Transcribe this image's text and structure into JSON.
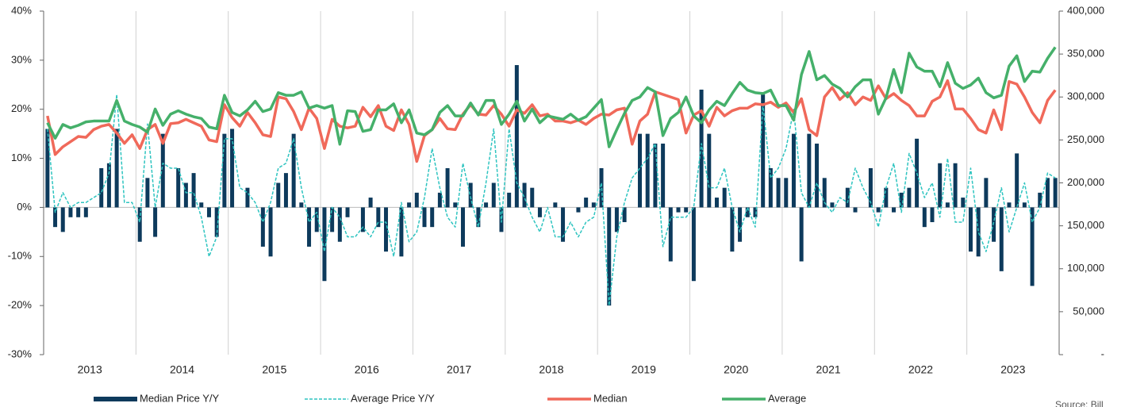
{
  "chart_data": {
    "type": "combo",
    "categories": [
      null,
      null,
      null,
      null,
      null,
      null,
      "2013",
      null,
      null,
      null,
      null,
      null,
      null,
      null,
      null,
      null,
      null,
      null,
      "2014",
      null,
      null,
      null,
      null,
      null,
      null,
      null,
      null,
      null,
      null,
      null,
      "2015",
      null,
      null,
      null,
      null,
      null,
      null,
      null,
      null,
      null,
      null,
      null,
      "2016",
      null,
      null,
      null,
      null,
      null,
      null,
      null,
      null,
      null,
      null,
      null,
      "2017",
      null,
      null,
      null,
      null,
      null,
      null,
      null,
      null,
      null,
      null,
      null,
      "2018",
      null,
      null,
      null,
      null,
      null,
      null,
      null,
      null,
      null,
      null,
      null,
      "2019",
      null,
      null,
      null,
      null,
      null,
      null,
      null,
      null,
      null,
      null,
      null,
      "2020",
      null,
      null,
      null,
      null,
      null,
      null,
      null,
      null,
      null,
      null,
      null,
      "2021",
      null,
      null,
      null,
      null,
      null,
      null,
      null,
      null,
      null,
      null,
      null,
      "2022",
      null,
      null,
      null,
      null,
      null,
      null,
      null,
      null,
      null,
      null,
      null,
      "2023",
      null,
      null,
      null,
      null,
      null
    ],
    "series": [
      {
        "name": "Median Price Y/Y",
        "type": "bar",
        "color": "#0d3a5c",
        "values": [
          16,
          -4,
          -5,
          -2,
          -2,
          -2,
          0,
          8,
          9,
          16,
          0,
          0,
          -7,
          6,
          -6,
          15,
          0,
          8,
          5,
          7,
          1,
          -2,
          -6,
          15,
          16,
          0,
          4,
          0,
          -8,
          -10,
          5,
          7,
          15,
          1,
          -8,
          -5,
          -15,
          -5,
          -7,
          -2,
          0,
          -5,
          2,
          -4,
          -9,
          0,
          -10,
          1,
          3,
          -4,
          -4,
          3,
          8,
          1,
          -8,
          5,
          -4,
          1,
          5,
          -5,
          3,
          29,
          5,
          4,
          -2,
          0,
          1,
          -7,
          0,
          -1,
          2,
          1,
          8,
          -20,
          -5,
          -3,
          0,
          15,
          15,
          13,
          13,
          -11,
          -1,
          -1,
          -15,
          24,
          15,
          2,
          4,
          -9,
          -7,
          -2,
          -2,
          23,
          8,
          6,
          6,
          15,
          -11,
          15,
          13,
          6,
          1,
          0,
          4,
          -1,
          0,
          8,
          -1,
          4,
          -1,
          3,
          4,
          14,
          -4,
          -3,
          9,
          1,
          9,
          2,
          -9,
          -10,
          6,
          -7,
          -13,
          1,
          11,
          1,
          -16,
          3,
          6,
          6
        ]
      },
      {
        "name": "Average Price Y/Y",
        "type": "dashed",
        "color": "#2ec4c0",
        "values": [
          16,
          -1,
          3,
          0,
          1,
          1,
          2,
          3,
          7,
          23,
          1,
          1,
          -3,
          17,
          0,
          9,
          8,
          8,
          3,
          3,
          -2,
          -10,
          -6,
          14,
          14,
          4,
          3,
          1,
          -3,
          1,
          8,
          9,
          14,
          4,
          -3,
          -1,
          -9,
          0,
          -2,
          -6,
          -6,
          -4,
          -6,
          -3,
          -3,
          -10,
          1,
          -7,
          -5,
          2,
          12,
          4,
          -2,
          -4,
          9,
          2,
          -4,
          5,
          16,
          -3,
          16,
          5,
          2,
          -2,
          -5,
          0,
          -6,
          -6,
          -3,
          -6,
          -3,
          -2,
          5,
          -20,
          -6,
          1,
          6,
          8,
          10,
          13,
          -8,
          -2,
          -2,
          -2,
          0,
          13,
          4,
          4,
          8,
          0,
          -5,
          0,
          -4,
          21,
          6,
          8,
          12,
          20,
          3,
          0,
          5,
          1,
          -1,
          2,
          1,
          8,
          4,
          1,
          -4,
          4,
          9,
          -1,
          11,
          7,
          2,
          5,
          -2,
          10,
          -3,
          -3,
          8,
          -5,
          -9,
          -3,
          4,
          -5,
          0,
          5,
          -3,
          0,
          7,
          6
        ]
      },
      {
        "name": "Median",
        "type": "line",
        "axis": "y2",
        "color": "#f0695a",
        "values": [
          278000,
          233000,
          242000,
          248000,
          254000,
          253000,
          262000,
          266000,
          268000,
          258000,
          246000,
          256000,
          240000,
          262000,
          268000,
          246000,
          269000,
          270000,
          274000,
          270000,
          266000,
          250000,
          248000,
          291000,
          276000,
          266000,
          282000,
          270000,
          256000,
          254000,
          300000,
          298000,
          283000,
          262000,
          287000,
          275000,
          240000,
          274000,
          266000,
          264000,
          266000,
          288000,
          277000,
          290000,
          266000,
          261000,
          285000,
          268000,
          225000,
          255000,
          262000,
          275000,
          263000,
          262000,
          280000,
          291000,
          280000,
          279000,
          290000,
          280000,
          266000,
          285000,
          281000,
          291000,
          278000,
          280000,
          272000,
          272000,
          270000,
          273000,
          268000,
          275000,
          280000,
          279000,
          285000,
          287000,
          245000,
          272000,
          280000,
          306000,
          303000,
          300000,
          297000,
          258000,
          279000,
          284000,
          266000,
          288000,
          278000,
          284000,
          287000,
          287000,
          292000,
          291000,
          294000,
          288000,
          293000,
          282000,
          298000,
          262000,
          255000,
          300000,
          311000,
          297000,
          305000,
          291000,
          300000,
          296000,
          313000,
          298000,
          304000,
          296000,
          290000,
          278000,
          278000,
          295000,
          300000,
          319000,
          286000,
          286000,
          275000,
          262000,
          258000,
          285000,
          262000,
          318000,
          315000,
          300000,
          282000,
          270000,
          296000,
          308000
        ]
      },
      {
        "name": "Average",
        "type": "line",
        "axis": "y2",
        "color": "#45b06a",
        "values": [
          270000,
          252000,
          268000,
          264000,
          267000,
          271000,
          272000,
          272000,
          272000,
          296000,
          272000,
          268000,
          265000,
          259000,
          286000,
          267000,
          280000,
          284000,
          280000,
          277000,
          275000,
          265000,
          263000,
          302000,
          282000,
          278000,
          285000,
          295000,
          283000,
          286000,
          305000,
          302000,
          302000,
          306000,
          287000,
          290000,
          287000,
          290000,
          245000,
          284000,
          283000,
          260000,
          262000,
          285000,
          285000,
          292000,
          270000,
          285000,
          258000,
          256000,
          262000,
          282000,
          290000,
          278000,
          278000,
          293000,
          279000,
          296000,
          296000,
          268000,
          280000,
          295000,
          272000,
          286000,
          270000,
          278000,
          276000,
          274000,
          280000,
          273000,
          277000,
          287000,
          297000,
          242000,
          262000,
          281000,
          296000,
          300000,
          311000,
          306000,
          255000,
          275000,
          282000,
          300000,
          278000,
          270000,
          285000,
          295000,
          290000,
          304000,
          317000,
          308000,
          305000,
          304000,
          308000,
          290000,
          290000,
          273000,
          326000,
          353000,
          320000,
          325000,
          315000,
          310000,
          300000,
          312000,
          320000,
          320000,
          280000,
          299000,
          332000,
          305000,
          351000,
          335000,
          330000,
          330000,
          312000,
          340000,
          316000,
          310000,
          314000,
          322000,
          305000,
          299000,
          302000,
          336000,
          348000,
          318000,
          330000,
          329000,
          345000,
          358000
        ]
      }
    ],
    "ylim": [
      -30,
      40
    ],
    "yticks": [
      {
        "value": -30,
        "label": "-30%"
      },
      {
        "value": -20,
        "label": "-20%"
      },
      {
        "value": -10,
        "label": "-10%"
      },
      {
        "value": 0,
        "label": "0%"
      },
      {
        "value": 10,
        "label": "10%"
      },
      {
        "value": 20,
        "label": "20%"
      },
      {
        "value": 30,
        "label": "30%"
      },
      {
        "value": 40,
        "label": "40%"
      }
    ],
    "y2lim": [
      0,
      400000
    ],
    "y2ticks": [
      {
        "value": 0,
        "label": "-"
      },
      {
        "value": 50000,
        "label": "50,000"
      },
      {
        "value": 100000,
        "label": "100,000"
      },
      {
        "value": 150000,
        "label": "150,000"
      },
      {
        "value": 200000,
        "label": "200,000"
      },
      {
        "value": 250000,
        "label": "250,000"
      },
      {
        "value": 300000,
        "label": "300,000"
      },
      {
        "value": 350000,
        "label": "350,000"
      },
      {
        "value": 400000,
        "label": "400,000"
      }
    ],
    "source": "Source: Bill"
  }
}
